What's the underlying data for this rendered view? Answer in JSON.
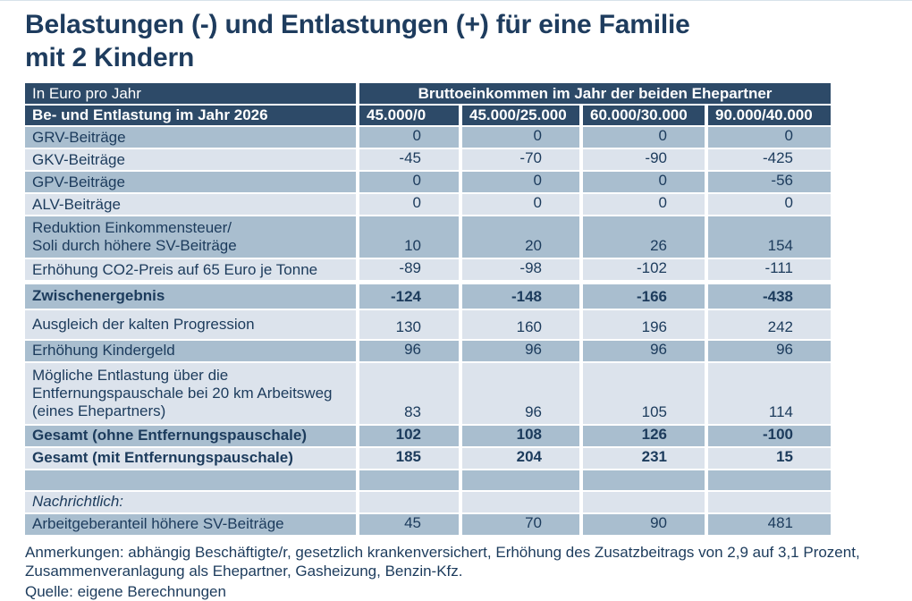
{
  "title_lines": [
    "Belastungen (-) und Entlastungen (+) für eine Familie",
    "mit 2 Kindern"
  ],
  "table": {
    "corner_label": "In Euro pro Jahr",
    "group_header": "Bruttoeinkommen im Jahr der beiden Ehepartner",
    "row_header": "Be- und Entlastung im Jahr 2026",
    "columns": [
      "45.000/0",
      "45.000/25.000",
      "60.000/30.000",
      "90.000/40.000"
    ],
    "rows": [
      {
        "label": "GRV-Beiträge",
        "values": [
          "0",
          "0",
          "0",
          "0"
        ],
        "shade": "dark"
      },
      {
        "label": "GKV-Beiträge",
        "values": [
          "-45",
          "-70",
          "-90",
          "-425"
        ],
        "shade": "light"
      },
      {
        "label": "GPV-Beiträge",
        "values": [
          "0",
          "0",
          "0",
          "-56"
        ],
        "shade": "dark"
      },
      {
        "label": "ALV-Beiträge",
        "values": [
          "0",
          "0",
          "0",
          "0"
        ],
        "shade": "light"
      },
      {
        "label": "Reduktion Einkommensteuer/\nSoli durch höhere SV-Beiträge",
        "values": [
          "10",
          "20",
          "26",
          "154"
        ],
        "shade": "dark",
        "cls": "lines2"
      },
      {
        "label": "Erhöhung CO2-Preis auf 65 Euro je Tonne",
        "values": [
          "-89",
          "-98",
          "-102",
          "-111"
        ],
        "shade": "light"
      },
      {
        "label": "Zwischenergebnis",
        "values": [
          "-124",
          "-148",
          "-166",
          "-438"
        ],
        "shade": "dark",
        "bold": true,
        "cls": "result"
      },
      {
        "label": "Ausgleich der kalten Progression",
        "values": [
          "130",
          "160",
          "196",
          "242"
        ],
        "shade": "light",
        "cls": "taller"
      },
      {
        "label": "Erhöhung Kindergeld",
        "values": [
          "96",
          "96",
          "96",
          "96"
        ],
        "shade": "dark"
      },
      {
        "label": "Mögliche Entlastung über die\nEntfernungspauschale bei 20 km Arbeitsweg\n(eines Ehepartners)",
        "values": [
          "83",
          "96",
          "105",
          "114"
        ],
        "shade": "light",
        "cls": "lines3"
      },
      {
        "label": "Gesamt (ohne Entfernungspauschale)",
        "values": [
          "102",
          "108",
          "126",
          "-100"
        ],
        "shade": "dark",
        "bold": true
      },
      {
        "label": "Gesamt (mit Entfernungspauschale)",
        "values": [
          "185",
          "204",
          "231",
          "15"
        ],
        "shade": "light",
        "bold": true
      },
      {
        "label": "",
        "values": [
          "",
          "",
          "",
          ""
        ],
        "shade": "dark",
        "cls": "spacer"
      },
      {
        "label": "Nachrichtlich:",
        "values": [
          "",
          "",
          "",
          ""
        ],
        "shade": "light",
        "italic": true
      },
      {
        "label": "Arbeitgeberanteil höhere SV-Beiträge",
        "values": [
          "45",
          "70",
          "90",
          "481"
        ],
        "shade": "dark"
      }
    ]
  },
  "footnotes": {
    "anmerkungen": "Anmerkungen: abhängig Beschäftigte/r, gesetzlich krankenversichert, Erhöhung des Zusatzbeitrags von 2,9 auf 3,1 Prozent, Zusammenveranlagung als Ehepartner, Gasheizung, Benzin-Kfz.",
    "quelle": "Quelle: eigene Berechnungen"
  },
  "colors": {
    "header_bg": "#2d4a68",
    "row_dark": "#a9becf",
    "row_light": "#dce3ec",
    "text": "#1c3b5c",
    "background": "#ffffff"
  },
  "chart_data": {
    "type": "table",
    "title": "Belastungen (-) und Entlastungen (+) für eine Familie mit 2 Kindern",
    "unit": "In Euro pro Jahr",
    "column_group": "Bruttoeinkommen im Jahr der beiden Ehepartner",
    "row_dimension": "Be- und Entlastung im Jahr 2026",
    "columns": [
      "45.000/0",
      "45.000/25.000",
      "60.000/30.000",
      "90.000/40.000"
    ],
    "rows": [
      {
        "label": "GRV-Beiträge",
        "values": [
          0,
          0,
          0,
          0
        ]
      },
      {
        "label": "GKV-Beiträge",
        "values": [
          -45,
          -70,
          -90,
          -425
        ]
      },
      {
        "label": "GPV-Beiträge",
        "values": [
          0,
          0,
          0,
          -56
        ]
      },
      {
        "label": "ALV-Beiträge",
        "values": [
          0,
          0,
          0,
          0
        ]
      },
      {
        "label": "Reduktion Einkommensteuer/Soli durch höhere SV-Beiträge",
        "values": [
          10,
          20,
          26,
          154
        ]
      },
      {
        "label": "Erhöhung CO2-Preis auf 65 Euro je Tonne",
        "values": [
          -89,
          -98,
          -102,
          -111
        ]
      },
      {
        "label": "Zwischenergebnis",
        "values": [
          -124,
          -148,
          -166,
          -438
        ]
      },
      {
        "label": "Ausgleich der kalten Progression",
        "values": [
          130,
          160,
          196,
          242
        ]
      },
      {
        "label": "Erhöhung Kindergeld",
        "values": [
          96,
          96,
          96,
          96
        ]
      },
      {
        "label": "Mögliche Entlastung über die Entfernungspauschale bei 20 km Arbeitsweg (eines Ehepartners)",
        "values": [
          83,
          96,
          105,
          114
        ]
      },
      {
        "label": "Gesamt (ohne Entfernungspauschale)",
        "values": [
          102,
          108,
          126,
          -100
        ]
      },
      {
        "label": "Gesamt (mit Entfernungspauschale)",
        "values": [
          185,
          204,
          231,
          15
        ]
      },
      {
        "label": "Nachrichtlich: Arbeitgeberanteil höhere SV-Beiträge",
        "values": [
          45,
          70,
          90,
          481
        ]
      }
    ]
  }
}
